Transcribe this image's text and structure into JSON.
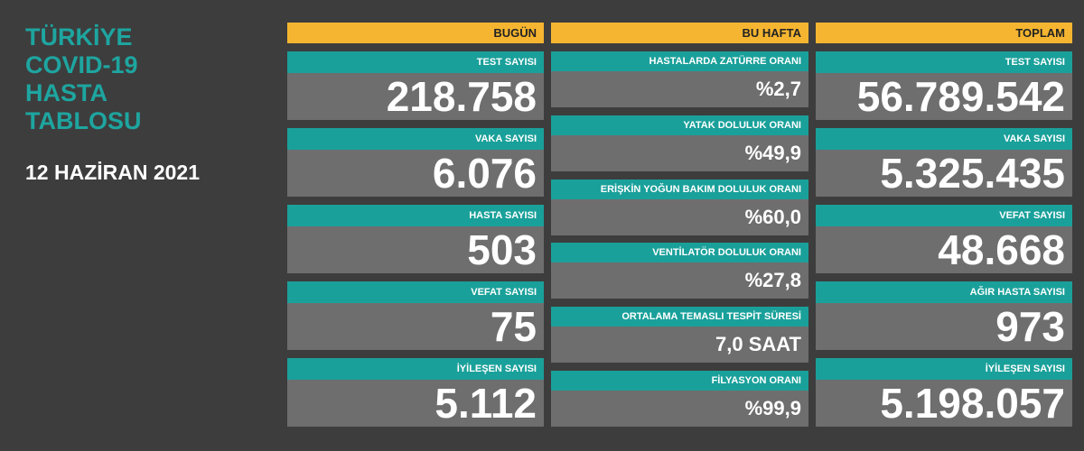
{
  "sidebar": {
    "title_lines": [
      "TÜRKİYE",
      "COVID-19",
      "HASTA",
      "TABLOSU"
    ],
    "date": "12 HAZİRAN 2021"
  },
  "columns": [
    {
      "header": "BUGÜN",
      "items": [
        {
          "label": "TEST SAYISI",
          "value": "218.758"
        },
        {
          "label": "VAKA SAYISI",
          "value": "6.076"
        },
        {
          "label": "HASTA SAYISI",
          "value": "503"
        },
        {
          "label": "VEFAT SAYISI",
          "value": "75"
        },
        {
          "label": "İYİLEŞEN SAYISI",
          "value": "5.112"
        }
      ]
    },
    {
      "header": "BU HAFTA",
      "items": [
        {
          "label": "HASTALARDA ZATÜRRE ORANI",
          "value": "%2,7"
        },
        {
          "label": "YATAK DOLULUK ORANI",
          "value": "%49,9"
        },
        {
          "label": "ERİŞKİN YOĞUN BAKIM DOLULUK ORANI",
          "value": "%60,0"
        },
        {
          "label": "VENTİLATÖR DOLULUK ORANI",
          "value": "%27,8"
        },
        {
          "label": "ORTALAMA TEMASLI TESPİT SÜRESİ",
          "value": "7,0 SAAT"
        },
        {
          "label": "FİLYASYON ORANI",
          "value": "%99,9"
        }
      ]
    },
    {
      "header": "TOPLAM",
      "items": [
        {
          "label": "TEST SAYISI",
          "value": "56.789.542"
        },
        {
          "label": "VAKA SAYISI",
          "value": "5.325.435"
        },
        {
          "label": "VEFAT SAYISI",
          "value": "48.668"
        },
        {
          "label": "AĞIR HASTA SAYISI",
          "value": "973"
        },
        {
          "label": "İYİLEŞEN SAYISI",
          "value": "5.198.057"
        }
      ]
    }
  ]
}
